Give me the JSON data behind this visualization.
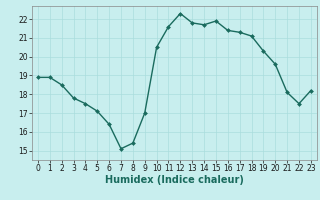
{
  "x": [
    0,
    1,
    2,
    3,
    4,
    5,
    6,
    7,
    8,
    9,
    10,
    11,
    12,
    13,
    14,
    15,
    16,
    17,
    18,
    19,
    20,
    21,
    22,
    23
  ],
  "y": [
    18.9,
    18.9,
    18.5,
    17.8,
    17.5,
    17.1,
    16.4,
    15.1,
    15.4,
    17.0,
    20.5,
    21.6,
    22.3,
    21.8,
    21.7,
    21.9,
    21.4,
    21.3,
    21.1,
    20.3,
    19.6,
    18.1,
    17.5,
    18.2
  ],
  "line_color": "#1a6b5e",
  "marker_color": "#1a6b5e",
  "bg_color": "#c8eeee",
  "grid_color": "#aadddd",
  "xlabel": "Humidex (Indice chaleur)",
  "ylim": [
    14.5,
    22.7
  ],
  "xlim": [
    -0.5,
    23.5
  ],
  "yticks": [
    15,
    16,
    17,
    18,
    19,
    20,
    21,
    22
  ],
  "xticks": [
    0,
    1,
    2,
    3,
    4,
    5,
    6,
    7,
    8,
    9,
    10,
    11,
    12,
    13,
    14,
    15,
    16,
    17,
    18,
    19,
    20,
    21,
    22,
    23
  ],
  "tick_label_fontsize": 5.5,
  "xlabel_fontsize": 7.0,
  "linewidth": 1.0,
  "markersize": 2.0
}
